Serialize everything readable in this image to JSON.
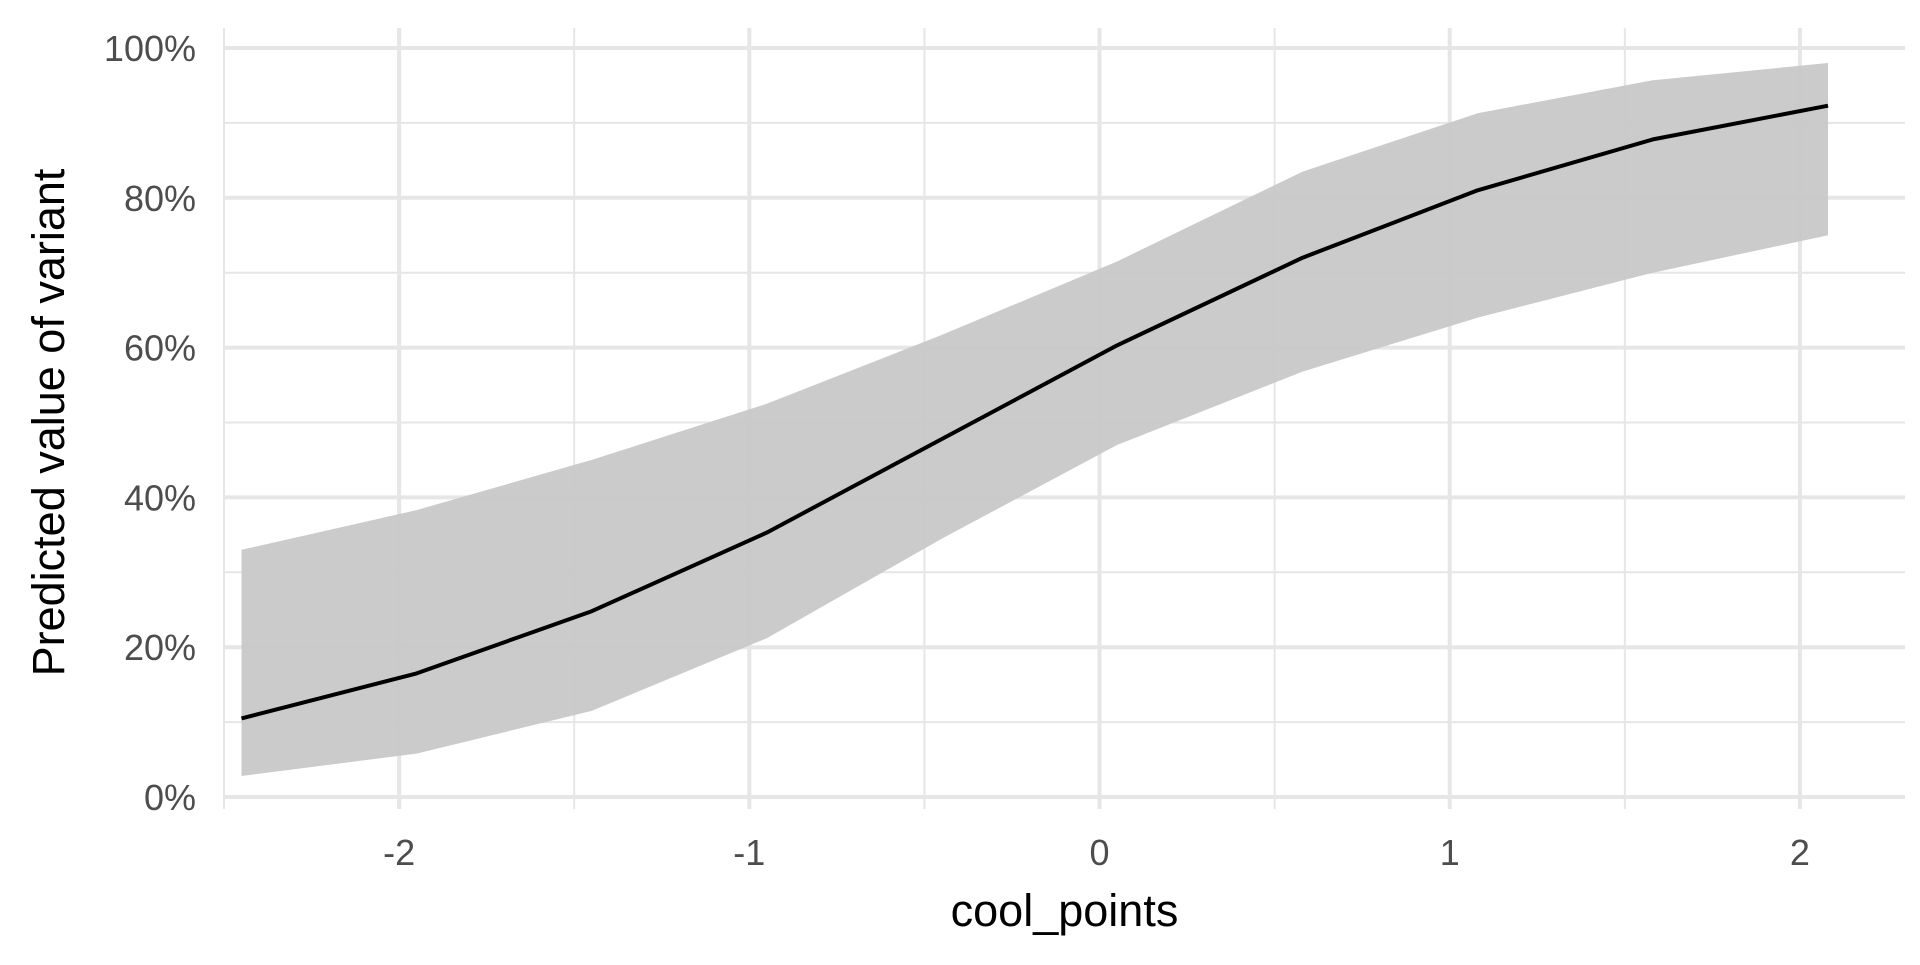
{
  "chart_data": {
    "type": "line",
    "title": "",
    "xlabel": "cool_points",
    "ylabel": "Predicted value of variant",
    "xlim": [
      -2.5,
      2.3
    ],
    "ylim": [
      0,
      1
    ],
    "x_ticks": [
      -2,
      -1,
      0,
      1,
      2
    ],
    "x_tick_labels": [
      "-2",
      "-1",
      "0",
      "1",
      "2"
    ],
    "y_ticks": [
      0,
      0.2,
      0.4,
      0.6,
      0.8,
      1.0
    ],
    "y_tick_labels": [
      "0%",
      "20%",
      "40%",
      "60%",
      "80%",
      "100%"
    ],
    "grid": true,
    "legend": "none",
    "colors": {
      "line": "#000000",
      "ribbon": "#c8c8c8",
      "grid": "#e6e6e6"
    },
    "series": [
      {
        "x": [
          -2.45,
          -1.95,
          -1.45,
          -0.95,
          -0.45,
          0.05,
          0.58,
          1.08,
          1.58,
          2.08
        ],
        "y": [
          0.105,
          0.165,
          0.248,
          0.353,
          0.478,
          0.603,
          0.72,
          0.81,
          0.878,
          0.923
        ],
        "ymin": [
          0.028,
          0.058,
          0.115,
          0.212,
          0.345,
          0.47,
          0.568,
          0.64,
          0.7,
          0.75
        ],
        "ymax": [
          0.33,
          0.383,
          0.45,
          0.525,
          0.617,
          0.715,
          0.835,
          0.913,
          0.957,
          0.98
        ]
      }
    ]
  }
}
